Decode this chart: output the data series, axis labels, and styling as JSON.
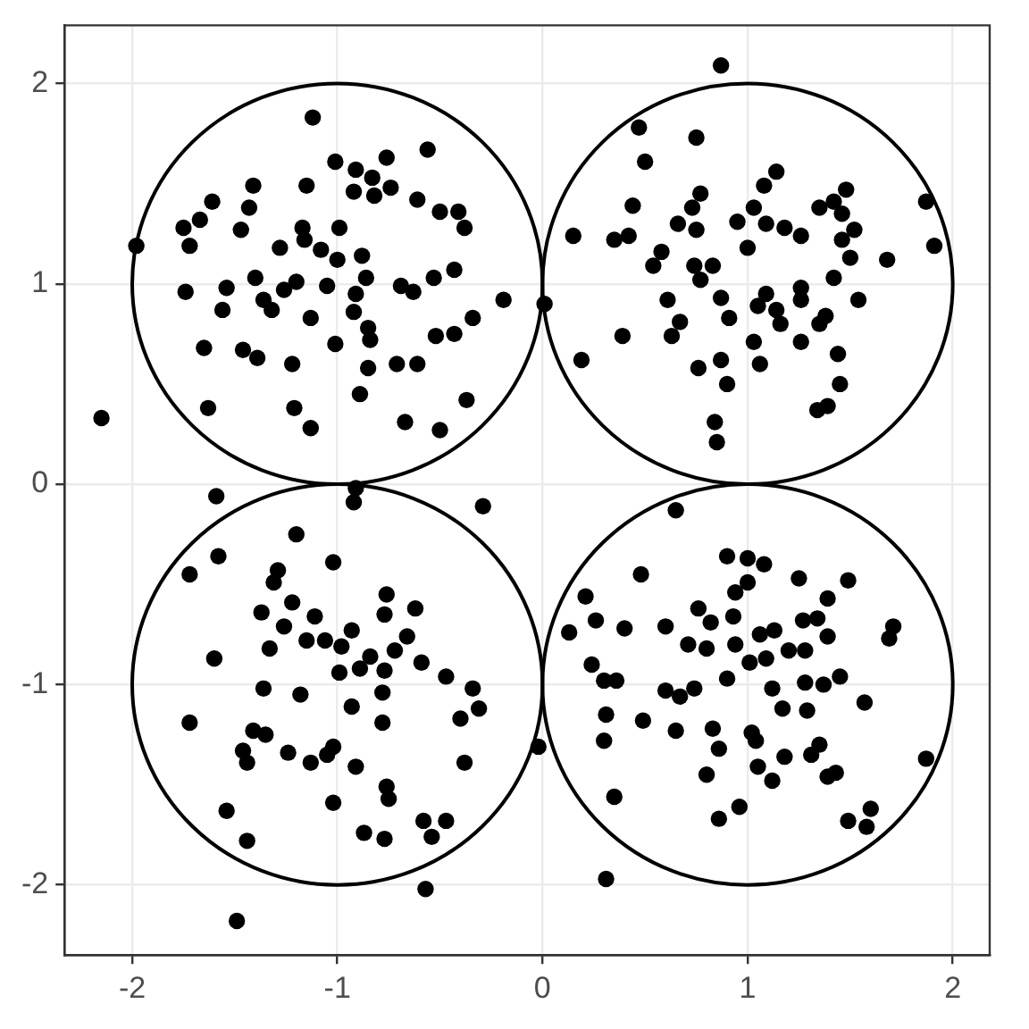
{
  "chart_data": {
    "type": "scatter",
    "xlim": [
      -2.33,
      2.18
    ],
    "ylim": [
      -2.35,
      2.29
    ],
    "xticks": [
      -2,
      -1,
      0,
      1,
      2
    ],
    "yticks": [
      -2,
      -1,
      0,
      1,
      2
    ],
    "grid": true,
    "legend": false,
    "series": [
      {
        "type": "scatter",
        "color": "#000000",
        "marker": "circle",
        "x": [
          -1.12,
          -0.56,
          -1.01,
          -0.76,
          -0.91,
          -0.83,
          -0.74,
          -0.92,
          -0.82,
          -1.41,
          -1.15,
          -1.61,
          -1.67,
          -1.75,
          -1.72,
          -1.43,
          -1.47,
          -1.98,
          -0.61,
          -0.5,
          -0.41,
          -0.38,
          -0.99,
          -1.17,
          -1.28,
          -1.16,
          -1.08,
          -1.0,
          -0.88,
          -0.86,
          -0.91,
          -0.92,
          -0.85,
          -0.84,
          -1.05,
          -1.4,
          -1.36,
          -1.32,
          -1.26,
          -1.2,
          -1.13,
          -1.54,
          -1.74,
          -1.56,
          -1.65,
          -1.46,
          -1.39,
          -1.22,
          -1.01,
          -0.69,
          -0.63,
          -0.53,
          -0.43,
          -0.19,
          -0.34,
          -0.52,
          -0.43,
          -0.85,
          -0.71,
          -0.61,
          -0.89,
          -1.21,
          -1.13,
          -1.63,
          -2.15,
          -0.67,
          -0.5,
          -0.37,
          0.01,
          0.87,
          0.47,
          0.75,
          0.5,
          1.14,
          1.08,
          0.77,
          0.73,
          0.44,
          0.66,
          0.75,
          0.15,
          0.35,
          0.42,
          0.95,
          1.03,
          1.09,
          1.18,
          1.26,
          1.0,
          1.48,
          1.42,
          1.35,
          1.46,
          1.52,
          1.46,
          1.5,
          1.68,
          1.87,
          1.91,
          0.58,
          0.54,
          0.74,
          0.83,
          0.77,
          1.42,
          1.54,
          1.26,
          1.26,
          1.09,
          1.05,
          1.14,
          0.87,
          0.91,
          0.61,
          0.67,
          0.63,
          1.16,
          1.26,
          1.35,
          1.38,
          1.03,
          1.06,
          0.39,
          0.19,
          0.76,
          0.87,
          0.9,
          1.44,
          1.45,
          1.34,
          1.39,
          0.84,
          0.85,
          -1.59,
          -0.91,
          -0.92,
          -0.29,
          -1.2,
          -1.58,
          -1.72,
          -1.29,
          -1.31,
          -1.02,
          -1.37,
          -1.22,
          -1.26,
          -1.11,
          -1.15,
          -1.06,
          -0.98,
          -0.93,
          -0.76,
          -0.62,
          -0.77,
          -0.66,
          -0.72,
          -0.59,
          -0.84,
          -0.89,
          -0.77,
          -0.99,
          -1.33,
          -1.6,
          -0.47,
          -0.34,
          -0.31,
          -0.4,
          -1.36,
          -1.18,
          -0.78,
          -0.93,
          -0.78,
          -1.72,
          -1.41,
          -1.35,
          -1.46,
          -1.44,
          -1.24,
          -1.13,
          -1.05,
          -1.02,
          -0.91,
          -0.38,
          -0.76,
          -0.75,
          -1.02,
          -1.54,
          -1.44,
          -0.87,
          -0.77,
          -0.58,
          -0.54,
          -0.47,
          -0.57,
          -1.49,
          -0.02,
          0.65,
          0.48,
          0.9,
          1.0,
          1.08,
          1.0,
          0.94,
          1.25,
          1.49,
          1.39,
          0.21,
          0.26,
          0.13,
          0.4,
          0.6,
          0.76,
          0.82,
          0.93,
          0.71,
          0.8,
          0.94,
          1.06,
          1.13,
          1.01,
          1.09,
          1.2,
          1.28,
          1.27,
          1.34,
          1.39,
          1.71,
          1.69,
          0.24,
          0.3,
          0.36,
          0.9,
          0.6,
          0.67,
          0.74,
          1.12,
          1.28,
          1.37,
          1.45,
          1.57,
          1.17,
          1.29,
          0.31,
          0.49,
          0.3,
          0.65,
          0.83,
          0.86,
          1.02,
          1.04,
          1.35,
          1.31,
          1.18,
          1.05,
          1.12,
          0.8,
          1.39,
          1.43,
          1.87,
          0.35,
          0.86,
          0.96,
          1.49,
          1.6,
          1.58,
          0.31
        ],
        "values": [
          1.83,
          1.67,
          1.61,
          1.63,
          1.57,
          1.53,
          1.48,
          1.46,
          1.44,
          1.49,
          1.49,
          1.41,
          1.32,
          1.28,
          1.19,
          1.38,
          1.27,
          1.19,
          1.42,
          1.36,
          1.36,
          1.28,
          1.28,
          1.28,
          1.18,
          1.22,
          1.17,
          1.12,
          1.14,
          1.03,
          0.95,
          0.86,
          0.78,
          0.72,
          0.99,
          1.03,
          0.92,
          0.87,
          0.97,
          1.01,
          0.83,
          0.98,
          0.96,
          0.87,
          0.68,
          0.67,
          0.63,
          0.6,
          0.7,
          0.99,
          0.96,
          1.03,
          1.07,
          0.92,
          0.83,
          0.74,
          0.75,
          0.58,
          0.6,
          0.6,
          0.45,
          0.38,
          0.28,
          0.38,
          0.33,
          0.31,
          0.27,
          0.42,
          0.9,
          2.09,
          1.78,
          1.73,
          1.61,
          1.56,
          1.49,
          1.45,
          1.38,
          1.39,
          1.3,
          1.27,
          1.24,
          1.22,
          1.24,
          1.31,
          1.38,
          1.3,
          1.28,
          1.24,
          1.18,
          1.47,
          1.41,
          1.38,
          1.35,
          1.27,
          1.22,
          1.13,
          1.12,
          1.41,
          1.19,
          1.16,
          1.09,
          1.09,
          1.09,
          1.02,
          1.03,
          0.92,
          0.98,
          0.92,
          0.95,
          0.89,
          0.87,
          0.93,
          0.83,
          0.92,
          0.81,
          0.74,
          0.8,
          0.71,
          0.8,
          0.84,
          0.71,
          0.6,
          0.74,
          0.62,
          0.58,
          0.62,
          0.5,
          0.65,
          0.5,
          0.37,
          0.39,
          0.31,
          0.21,
          -0.06,
          -0.02,
          -0.09,
          -0.11,
          -0.25,
          -0.36,
          -0.45,
          -0.43,
          -0.49,
          -0.39,
          -0.64,
          -0.59,
          -0.71,
          -0.66,
          -0.78,
          -0.78,
          -0.81,
          -0.73,
          -0.55,
          -0.62,
          -0.65,
          -0.76,
          -0.83,
          -0.89,
          -0.86,
          -0.92,
          -0.93,
          -0.94,
          -0.82,
          -0.87,
          -0.96,
          -1.02,
          -1.12,
          -1.17,
          -1.02,
          -1.05,
          -1.04,
          -1.11,
          -1.19,
          -1.19,
          -1.23,
          -1.25,
          -1.33,
          -1.39,
          -1.34,
          -1.39,
          -1.35,
          -1.31,
          -1.41,
          -1.39,
          -1.51,
          -1.57,
          -1.59,
          -1.63,
          -1.78,
          -1.74,
          -1.77,
          -1.68,
          -1.76,
          -1.68,
          -2.02,
          -2.18,
          -1.31,
          -0.13,
          -0.45,
          -0.36,
          -0.37,
          -0.4,
          -0.49,
          -0.54,
          -0.47,
          -0.48,
          -0.57,
          -0.56,
          -0.68,
          -0.74,
          -0.72,
          -0.71,
          -0.62,
          -0.69,
          -0.66,
          -0.8,
          -0.82,
          -0.8,
          -0.75,
          -0.73,
          -0.89,
          -0.87,
          -0.83,
          -0.83,
          -0.68,
          -0.67,
          -0.76,
          -0.71,
          -0.77,
          -0.9,
          -0.98,
          -0.98,
          -0.97,
          -1.03,
          -1.06,
          -1.02,
          -1.02,
          -0.99,
          -1.0,
          -0.96,
          -1.09,
          -1.12,
          -1.13,
          -1.15,
          -1.18,
          -1.28,
          -1.23,
          -1.22,
          -1.32,
          -1.24,
          -1.28,
          -1.3,
          -1.35,
          -1.36,
          -1.41,
          -1.48,
          -1.45,
          -1.46,
          -1.44,
          -1.37,
          -1.56,
          -1.67,
          -1.61,
          -1.68,
          -1.62,
          -1.71,
          -1.97
        ]
      }
    ]
  }
}
